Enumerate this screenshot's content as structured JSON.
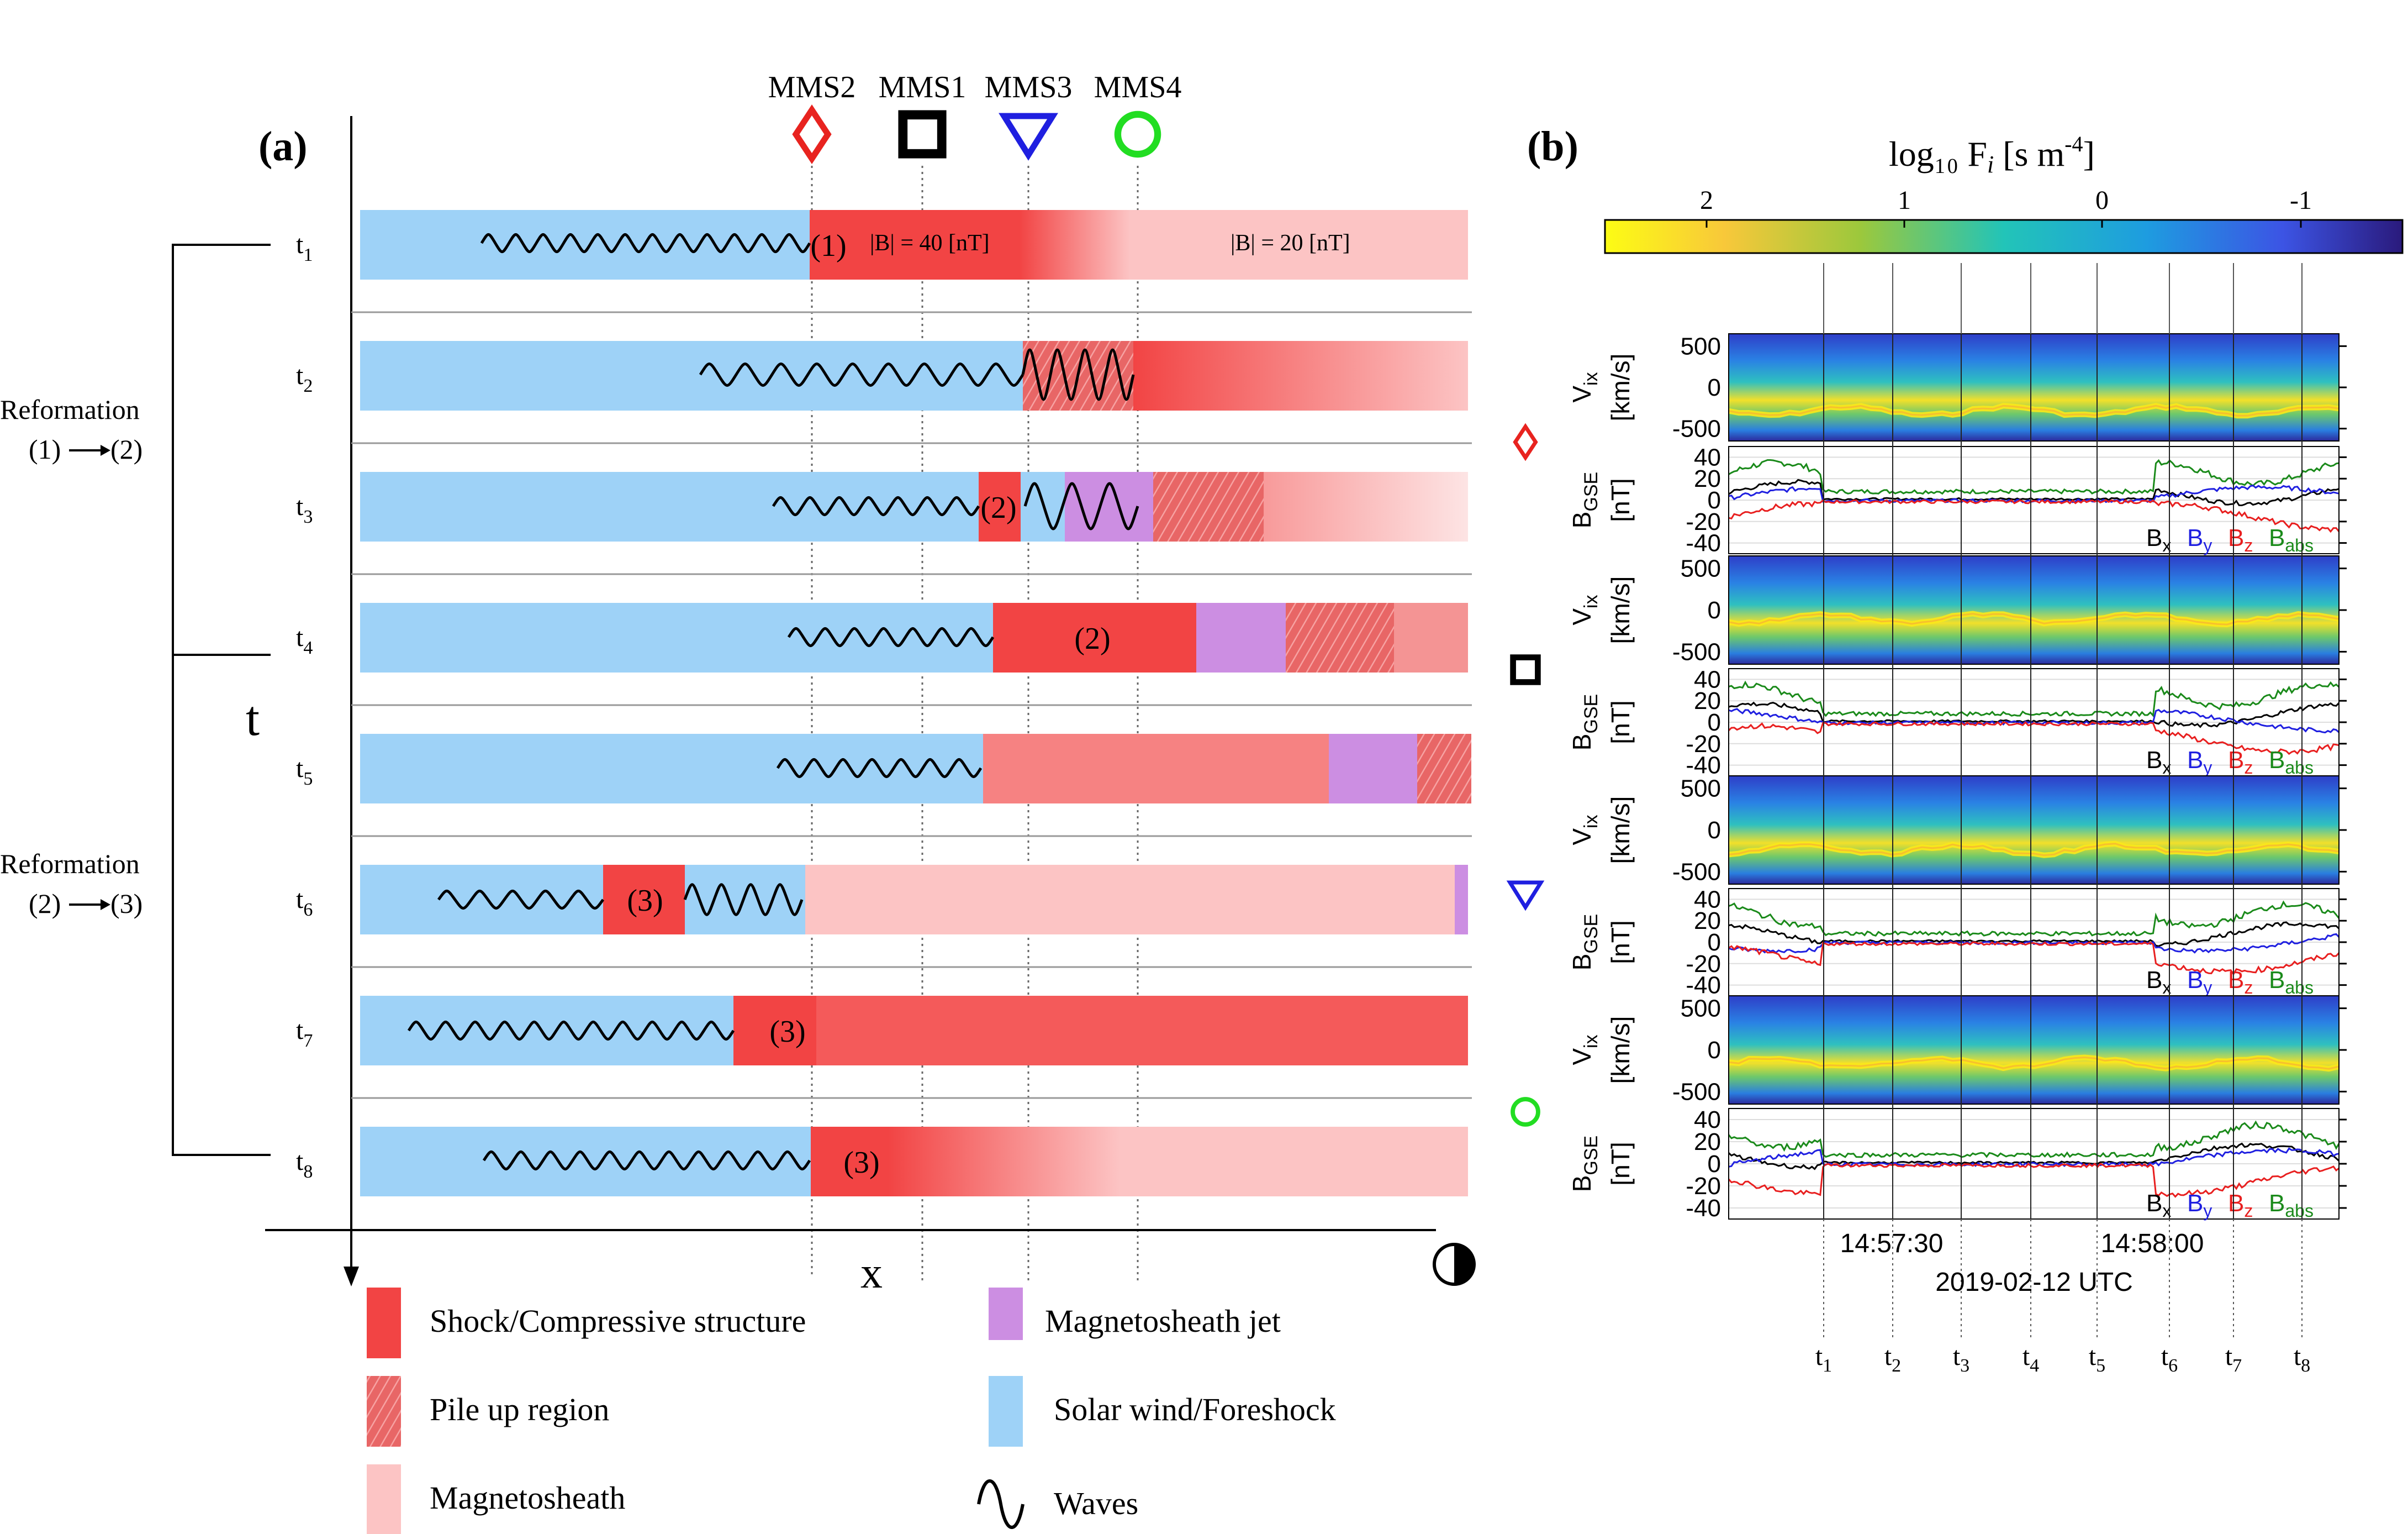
{
  "panel_a": {
    "label": "(a)",
    "spacecraft": [
      {
        "name": "MMS2",
        "marker": "diamond",
        "color": "#e8231f"
      },
      {
        "name": "MMS1",
        "marker": "square",
        "color": "#000000"
      },
      {
        "name": "MMS3",
        "marker": "triangle-down",
        "color": "#1f1fe0"
      },
      {
        "name": "MMS4",
        "marker": "circle",
        "color": "#22dd22"
      }
    ],
    "times": [
      "t",
      "t",
      "t",
      "t",
      "t",
      "t",
      "t",
      "t"
    ],
    "time_subscripts": [
      "1",
      "2",
      "3",
      "4",
      "5",
      "6",
      "7",
      "8"
    ],
    "row_labels": [
      {
        "row": 0,
        "text": "(1)"
      },
      {
        "row": 2,
        "text": "(2)"
      },
      {
        "row": 3,
        "text": "(2)"
      },
      {
        "row": 5,
        "text": "(3)"
      },
      {
        "row": 6,
        "text": "(3)"
      },
      {
        "row": 7,
        "text": "(3)"
      }
    ],
    "field_labels": [
      "|B| = 40 [nT]",
      "|B| = 20 [nT]"
    ],
    "axis_t": "t",
    "axis_x": "x",
    "reformations": [
      {
        "title": "Reformation",
        "from": "(1)",
        "to": "(2)"
      },
      {
        "title": "Reformation",
        "from": "(2)",
        "to": "(3)"
      }
    ],
    "legend": [
      {
        "label": "Shock/Compressive structure",
        "swatch": "shock"
      },
      {
        "label": "Pile up region",
        "swatch": "pileup"
      },
      {
        "label": "Magnetosheath",
        "swatch": "sheath"
      },
      {
        "label": "Magnetosheath jet",
        "swatch": "jet"
      },
      {
        "label": "Solar wind/Foreshock",
        "swatch": "sw"
      },
      {
        "label": "Waves",
        "swatch": "wave"
      }
    ],
    "colors": {
      "solar_wind": "#9ed2f7",
      "shock": "#f24444",
      "sheath": "#fcc4c4",
      "jet": "#cc8ee2",
      "pileup": "#e87070"
    }
  },
  "panel_b": {
    "label": "(b)",
    "colorbar_label": "log₁₀ F",
    "colorbar_label_sub": "i",
    "colorbar_label_unit": " [s m",
    "colorbar_label_exp": "-4",
    "colorbar_label_end": "]",
    "colorbar_ticks": [
      "2",
      "1",
      "0",
      "-1"
    ],
    "ylabels": {
      "vix_main": "V",
      "vix_sub": "ix",
      "vix_unit": "[km/s]",
      "bgse_main": "B",
      "bgse_sub": "GSE",
      "bgse_unit": "[nT]"
    },
    "v_ticks": [
      "500",
      "0",
      "-500"
    ],
    "b_ticks": [
      "40",
      "20",
      "0",
      "-20",
      "-40"
    ],
    "b_legend": [
      {
        "main": "B",
        "sub": "x",
        "color": "#000000"
      },
      {
        "main": "B",
        "sub": "y",
        "color": "#1f1fe0"
      },
      {
        "main": "B",
        "sub": "z",
        "color": "#e81f1f"
      },
      {
        "main": "B",
        "sub": "abs",
        "color": "#1a8a1a"
      }
    ],
    "x_ticks": [
      "14:57:30",
      "14:58:00"
    ],
    "x_label": "2019-02-12 UTC",
    "time_markers": [
      "t",
      "t",
      "t",
      "t",
      "t",
      "t",
      "t",
      "t"
    ],
    "time_marker_subscripts": [
      "1",
      "2",
      "3",
      "4",
      "5",
      "6",
      "7",
      "8"
    ],
    "spacecraft_order": [
      "diamond",
      "square",
      "triangle-down",
      "circle"
    ]
  }
}
